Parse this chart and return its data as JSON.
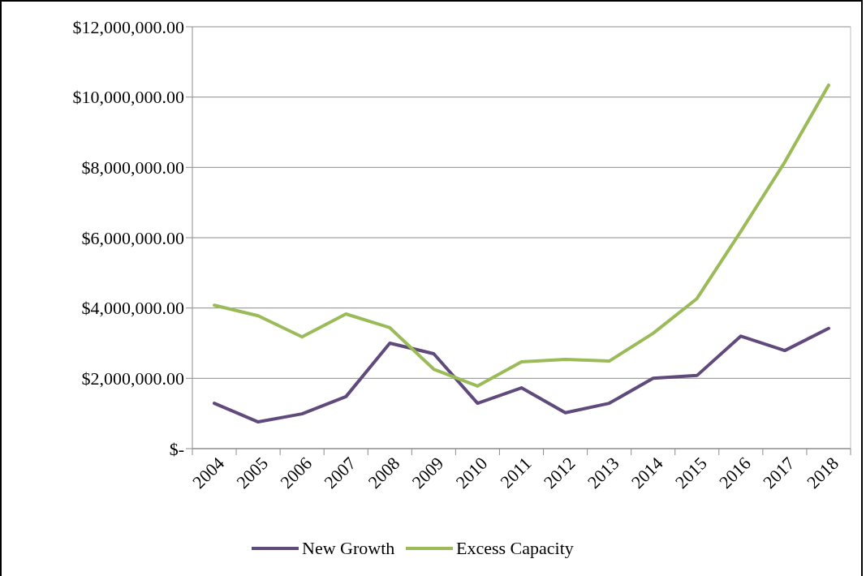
{
  "chart_data": {
    "type": "line",
    "categories": [
      "2004",
      "2005",
      "2006",
      "2007",
      "2008",
      "2009",
      "2010",
      "2011",
      "2012",
      "2013",
      "2014",
      "2015",
      "2016",
      "2017",
      "2018"
    ],
    "series": [
      {
        "name": "New Growth",
        "color": "#604a7b",
        "values": [
          1290000,
          760000,
          990000,
          1480000,
          3000000,
          2700000,
          1290000,
          1730000,
          1020000,
          1290000,
          2000000,
          2080000,
          3200000,
          2790000,
          3420000
        ]
      },
      {
        "name": "Excess Capacity",
        "color": "#9bbb59",
        "values": [
          4080000,
          3780000,
          3180000,
          3830000,
          3440000,
          2260000,
          1780000,
          2470000,
          2540000,
          2490000,
          3280000,
          4270000,
          6180000,
          8150000,
          10340000
        ]
      }
    ],
    "ylim": [
      0,
      12000000
    ],
    "yticks": [
      {
        "value": 0,
        "label": "$-"
      },
      {
        "value": 2000000,
        "label": "$2,000,000.00"
      },
      {
        "value": 4000000,
        "label": "$4,000,000.00"
      },
      {
        "value": 6000000,
        "label": "$6,000,000.00"
      },
      {
        "value": 8000000,
        "label": "$8,000,000.00"
      },
      {
        "value": 10000000,
        "label": "$10,000,000.00"
      },
      {
        "value": 12000000,
        "label": "$12,000,000.00"
      }
    ],
    "grid": "y",
    "legend": "bottom",
    "marker": "none",
    "line_style": "solid"
  }
}
